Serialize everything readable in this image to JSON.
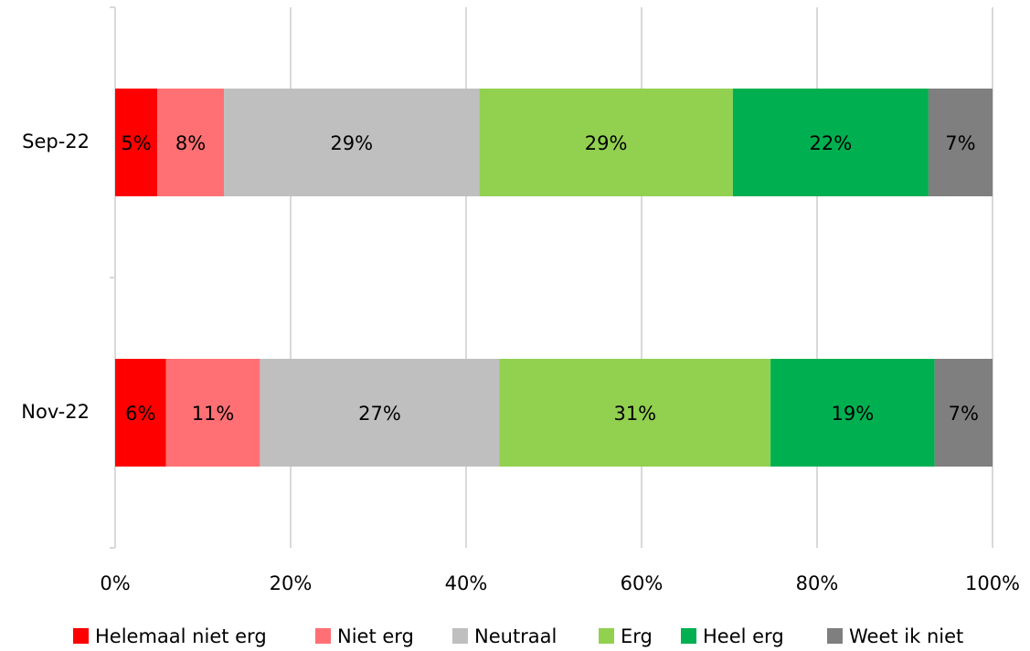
{
  "chart_data": {
    "type": "stacked_barh",
    "categories": [
      "Sep-22",
      "Nov-22"
    ],
    "series": [
      {
        "name": "Helemaal niet erg",
        "color": "#ff0000",
        "values": [
          4.8,
          5.8
        ],
        "value_labels": [
          "5%",
          "6%"
        ]
      },
      {
        "name": "Niet erg",
        "color": "#ff7074",
        "values": [
          7.6,
          10.7
        ],
        "value_labels": [
          "8%",
          "11%"
        ]
      },
      {
        "name": "Neutraal",
        "color": "#bfbfbf",
        "values": [
          29.1,
          27.3
        ],
        "value_labels": [
          "29%",
          "27%"
        ]
      },
      {
        "name": "Erg",
        "color": "#92d050",
        "values": [
          28.9,
          30.9
        ],
        "value_labels": [
          "29%",
          "31%"
        ]
      },
      {
        "name": "Heel erg",
        "color": "#00b050",
        "values": [
          22.3,
          18.7
        ],
        "value_labels": [
          "22%",
          "19%"
        ]
      },
      {
        "name": "Weet ik niet",
        "color": "#7f7f7f",
        "values": [
          7.3,
          6.6
        ],
        "value_labels": [
          "7%",
          "7%"
        ]
      }
    ],
    "xlim": [
      0,
      100
    ],
    "xticks": [
      {
        "value": 0,
        "label": "0%"
      },
      {
        "value": 20,
        "label": "20%"
      },
      {
        "value": 40,
        "label": "40%"
      },
      {
        "value": 60,
        "label": "60%"
      },
      {
        "value": 80,
        "label": "80%"
      },
      {
        "value": 100,
        "label": "100%"
      }
    ],
    "grid": true,
    "legend": "bottom"
  }
}
